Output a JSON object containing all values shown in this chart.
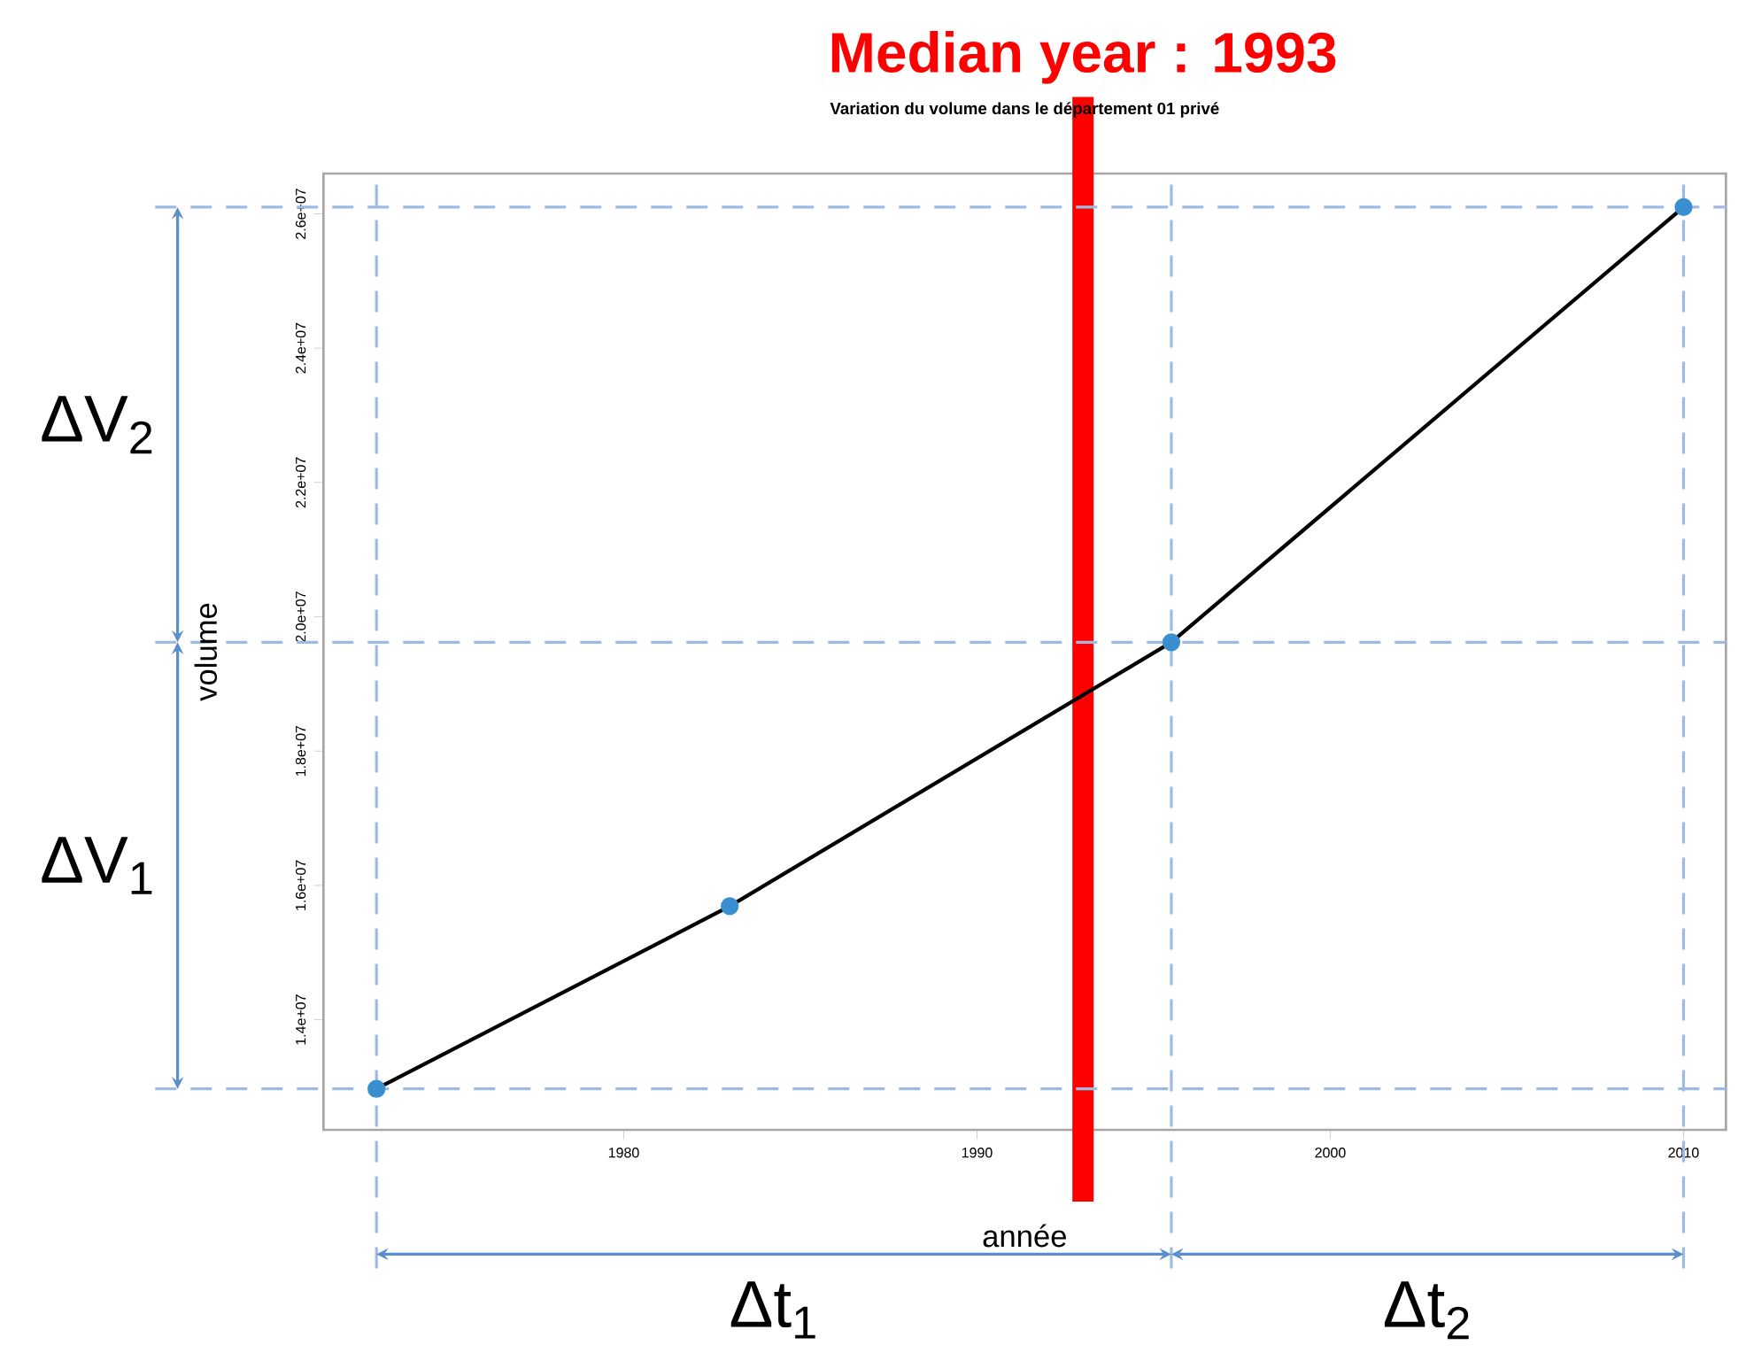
{
  "chart_data": {
    "type": "line",
    "title": "Variation du volume dans le département 01 privé",
    "xlabel": "année",
    "ylabel": "volume",
    "x": [
      1973,
      1983,
      1995.5,
      2010
    ],
    "series": [
      {
        "color": "#000000",
        "values": [
          12970000,
          15690000,
          19620000,
          26100000
        ]
      }
    ],
    "marker": "circle",
    "line_style": "solid",
    "xlim": [
      1971.5,
      2011.2
    ],
    "xticks": [
      1980,
      1990,
      2000,
      2010
    ],
    "ylim": [
      12360000,
      26600000
    ],
    "yticks": [
      {
        "value": 14000000,
        "label": "1.4e+07"
      },
      {
        "value": 16000000,
        "label": "1.6e+07"
      },
      {
        "value": 18000000,
        "label": "1.8e+07"
      },
      {
        "value": 20000000,
        "label": "2.0e+07"
      },
      {
        "value": 22000000,
        "label": "2.2e+07"
      },
      {
        "value": 24000000,
        "label": "2.4e+07"
      },
      {
        "value": 26000000,
        "label": "2.6e+07"
      }
    ],
    "ref_lines": [
      {
        "axis": "x",
        "value": 1993,
        "label": "Median year : 1993",
        "color": "#ff0000",
        "line_style": "solid"
      },
      {
        "axis": "y",
        "value": 12970000,
        "color": "#9dbbe3",
        "line_style": "dashed"
      },
      {
        "axis": "y",
        "value": 19620000,
        "color": "#9dbbe3",
        "line_style": "dashed"
      },
      {
        "axis": "y",
        "value": 26100000,
        "color": "#9dbbe3",
        "line_style": "dashed"
      },
      {
        "axis": "x",
        "value": 1973,
        "color": "#9dbbe3",
        "line_style": "dashed"
      },
      {
        "axis": "x",
        "value": 1995.5,
        "color": "#9dbbe3",
        "line_style": "dashed"
      },
      {
        "axis": "x",
        "value": 2010,
        "color": "#9dbbe3",
        "line_style": "dashed"
      }
    ],
    "annotations": [
      "ΔV$_{2}$",
      "ΔV$_{1}$",
      "Δt$_{1}$",
      "Δt$_{2}$"
    ]
  }
}
